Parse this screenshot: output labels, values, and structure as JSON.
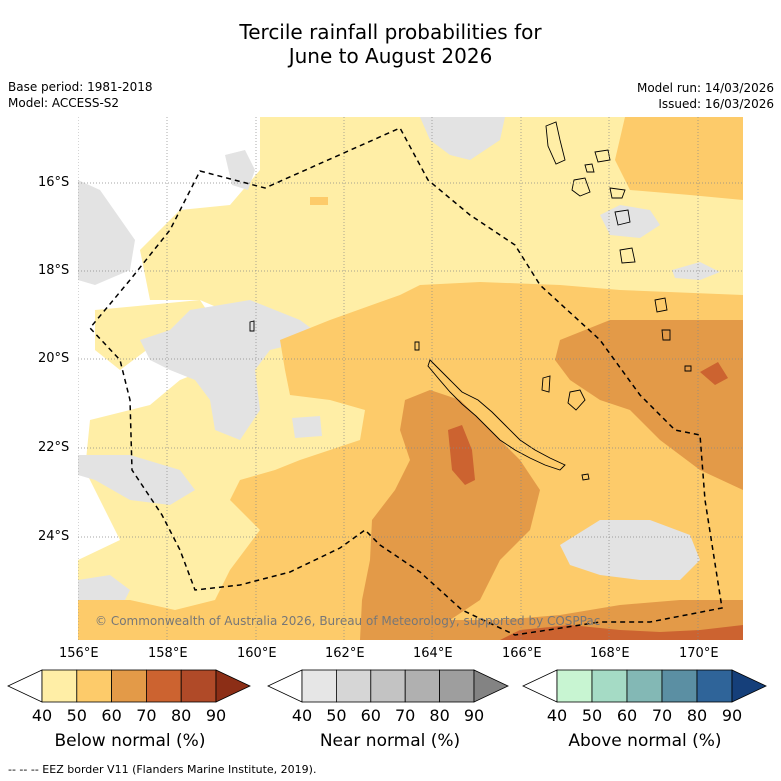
{
  "title": {
    "line1": "Tercile rainfall probabilities for",
    "line2": "June to August 2026"
  },
  "meta": {
    "base_period": "Base period: 1981-2018",
    "model": "Model: ACCESS-S2",
    "model_run": "Model run: 14/03/2026",
    "issued": "Issued: 16/03/2026"
  },
  "map": {
    "lat_labels": [
      "16°S",
      "18°S",
      "20°S",
      "22°S",
      "24°S"
    ],
    "lon_labels": [
      "156°E",
      "158°E",
      "160°E",
      "162°E",
      "164°E",
      "166°E",
      "168°E",
      "170°E"
    ],
    "copyright": "© Commonwealth of Australia 2026, Bureau of Meteorology, supported by COSPPac",
    "colors": {
      "white": "#ffffff",
      "grey": "#e3e3e3",
      "below_40": "#ffeea6",
      "below_50": "#fdcb6a",
      "below_60": "#e39a48",
      "below_70": "#cc6330"
    }
  },
  "colorbars": [
    {
      "name": "below",
      "title": "Below normal (%)",
      "ticks": [
        "40",
        "50",
        "60",
        "70",
        "80",
        "90"
      ],
      "colors": [
        "#ffffff",
        "#ffeea6",
        "#fdcb6a",
        "#e39a48",
        "#cc6330",
        "#b04a28",
        "#8c2e16"
      ]
    },
    {
      "name": "near",
      "title": "Near normal (%)",
      "ticks": [
        "40",
        "50",
        "60",
        "70",
        "80",
        "90"
      ],
      "colors": [
        "#ffffff",
        "#e6e6e6",
        "#d6d6d6",
        "#c3c3c3",
        "#b0b0b0",
        "#9e9e9e",
        "#838383"
      ]
    },
    {
      "name": "above",
      "title": "Above normal (%)",
      "ticks": [
        "40",
        "50",
        "60",
        "70",
        "80",
        "90"
      ],
      "colors": [
        "#ffffff",
        "#c8f5d2",
        "#a5dbc5",
        "#83b8b5",
        "#5b8fa3",
        "#2f6499",
        "#153f7a"
      ]
    }
  ],
  "footnote": "--  --  -- EEZ border V11 (Flanders Marine Institute, 2019)."
}
